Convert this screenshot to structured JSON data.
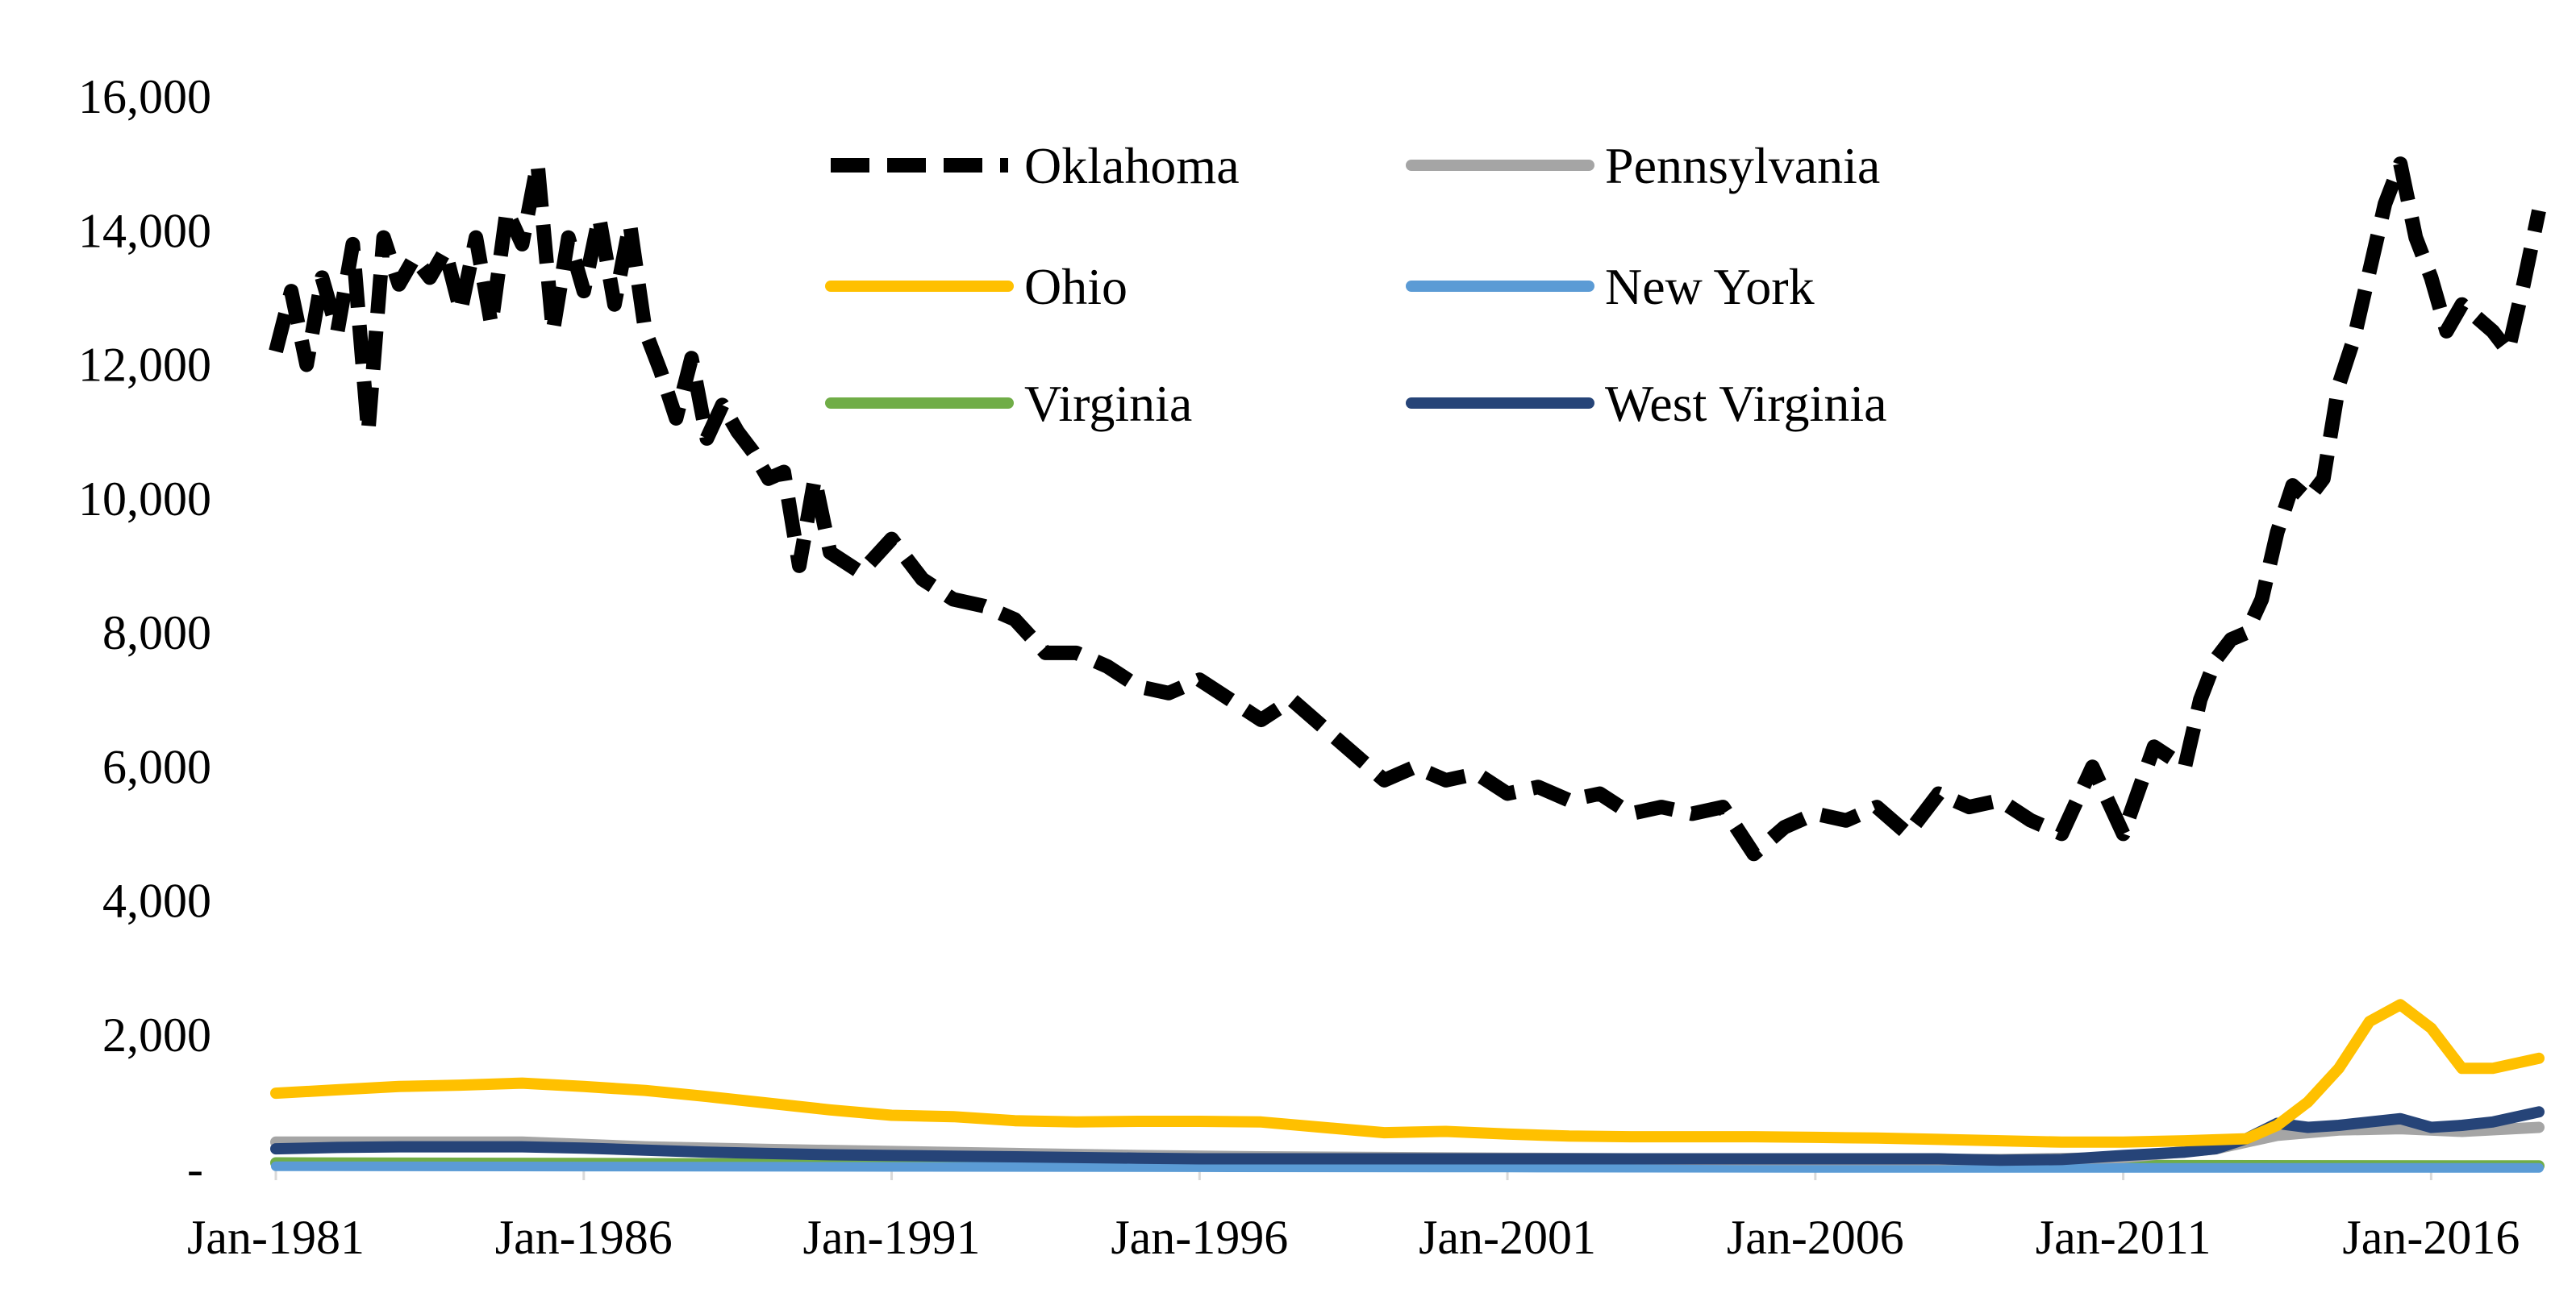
{
  "chart_data": {
    "type": "line",
    "title": "",
    "xlabel": "",
    "ylabel": "",
    "ylim": [
      0,
      16000
    ],
    "xlim": [
      1981.0,
      2017.75
    ],
    "grid": false,
    "legend_position": "top-center",
    "y_ticks": [
      {
        "value": 0,
        "label": "-"
      },
      {
        "value": 2000,
        "label": "2,000"
      },
      {
        "value": 4000,
        "label": "4,000"
      },
      {
        "value": 6000,
        "label": "6,000"
      },
      {
        "value": 8000,
        "label": "8,000"
      },
      {
        "value": 10000,
        "label": "10,000"
      },
      {
        "value": 12000,
        "label": "12,000"
      },
      {
        "value": 14000,
        "label": "14,000"
      },
      {
        "value": 16000,
        "label": "16,000"
      }
    ],
    "x_ticks": [
      {
        "value": 1981,
        "label": "Jan-1981"
      },
      {
        "value": 1986,
        "label": "Jan-1986"
      },
      {
        "value": 1991,
        "label": "Jan-1991"
      },
      {
        "value": 1996,
        "label": "Jan-1996"
      },
      {
        "value": 2001,
        "label": "Jan-2001"
      },
      {
        "value": 2006,
        "label": "Jan-2006"
      },
      {
        "value": 2011,
        "label": "Jan-2011"
      },
      {
        "value": 2016,
        "label": "Jan-2016"
      }
    ],
    "series": [
      {
        "name": "Oklahoma",
        "color": "#000000",
        "dash": "dashed",
        "x": [
          1981.0,
          1981.25,
          1981.5,
          1981.75,
          1982.0,
          1982.25,
          1982.5,
          1982.75,
          1983.0,
          1983.25,
          1983.5,
          1983.75,
          1984.0,
          1984.25,
          1984.5,
          1984.75,
          1985.0,
          1985.25,
          1985.5,
          1985.75,
          1986.0,
          1986.25,
          1986.5,
          1986.75,
          1987.0,
          1987.25,
          1987.5,
          1987.75,
          1988.0,
          1988.25,
          1988.5,
          1988.75,
          1989.0,
          1989.25,
          1989.5,
          1989.75,
          1990.0,
          1990.5,
          1991.0,
          1991.5,
          1992.0,
          1992.5,
          1993.0,
          1993.5,
          1994.0,
          1994.5,
          1995.0,
          1995.5,
          1996.0,
          1996.5,
          1997.0,
          1997.5,
          1998.0,
          1998.5,
          1999.0,
          1999.5,
          2000.0,
          2000.5,
          2001.0,
          2001.5,
          2002.0,
          2002.5,
          2003.0,
          2003.5,
          2004.0,
          2004.5,
          2005.0,
          2005.5,
          2006.0,
          2006.5,
          2007.0,
          2007.5,
          2008.0,
          2008.5,
          2009.0,
          2009.5,
          2010.0,
          2010.5,
          2011.0,
          2011.5,
          2012.0,
          2012.25,
          2012.5,
          2012.75,
          2013.0,
          2013.25,
          2013.5,
          2013.75,
          2014.0,
          2014.25,
          2014.5,
          2014.75,
          2015.0,
          2015.25,
          2015.5,
          2015.75,
          2016.0,
          2016.25,
          2016.5,
          2016.75,
          2017.0,
          2017.25,
          2017.5,
          2017.75
        ],
        "values": [
          12200,
          13100,
          12000,
          13300,
          12500,
          13800,
          11000,
          13900,
          13200,
          13600,
          13300,
          13700,
          12800,
          13900,
          12600,
          14300,
          13800,
          15000,
          12500,
          13900,
          13100,
          14200,
          12900,
          14100,
          12500,
          11900,
          11200,
          12100,
          10900,
          11400,
          11000,
          10700,
          10300,
          10400,
          9000,
          10300,
          9200,
          8900,
          9400,
          8800,
          8500,
          8400,
          8200,
          7700,
          7700,
          7500,
          7200,
          7100,
          7300,
          7000,
          6700,
          7000,
          6600,
          6200,
          5800,
          6000,
          5800,
          5900,
          5600,
          5700,
          5500,
          5600,
          5300,
          5400,
          5300,
          5400,
          4700,
          5100,
          5300,
          5200,
          5400,
          5000,
          5600,
          5400,
          5500,
          5200,
          5000,
          6000,
          5000,
          6300,
          6000,
          7000,
          7600,
          7900,
          8000,
          8500,
          9500,
          10200,
          10000,
          10300,
          11700,
          12400,
          13400,
          14400,
          15000,
          13900,
          13300,
          12500,
          12900,
          12700,
          12500,
          12200,
          13200,
          14300
        ]
      },
      {
        "name": "Pennsylvania",
        "color": "#a5a5a5",
        "dash": "solid",
        "x": [
          1981.0,
          1983.0,
          1985.0,
          1987.0,
          1989.0,
          1991.0,
          1993.0,
          1995.0,
          1997.0,
          1999.0,
          2001.0,
          2003.0,
          2005.0,
          2007.0,
          2009.0,
          2011.0,
          2012.5,
          2013.5,
          2014.5,
          2015.5,
          2016.5,
          2017.75
        ],
        "values": [
          400,
          400,
          400,
          330,
          290,
          260,
          230,
          200,
          180,
          170,
          160,
          150,
          140,
          140,
          140,
          170,
          300,
          500,
          580,
          600,
          560,
          620
        ]
      },
      {
        "name": "Ohio",
        "color": "#ffc000",
        "dash": "solid",
        "x": [
          1981.0,
          1982.0,
          1983.0,
          1984.0,
          1985.0,
          1986.0,
          1987.0,
          1988.0,
          1989.0,
          1990.0,
          1991.0,
          1992.0,
          1993.0,
          1994.0,
          1995.0,
          1996.0,
          1997.0,
          1998.0,
          1999.0,
          2000.0,
          2001.0,
          2002.0,
          2003.0,
          2004.0,
          2005.0,
          2006.0,
          2007.0,
          2008.0,
          2009.0,
          2010.0,
          2011.0,
          2012.0,
          2013.0,
          2013.5,
          2014.0,
          2014.5,
          2015.0,
          2015.5,
          2016.0,
          2016.5,
          2017.0,
          2017.75
        ],
        "values": [
          1130,
          1180,
          1230,
          1250,
          1280,
          1230,
          1170,
          1080,
          980,
          880,
          800,
          780,
          720,
          700,
          710,
          710,
          700,
          620,
          540,
          560,
          520,
          490,
          480,
          480,
          480,
          470,
          460,
          440,
          420,
          400,
          400,
          420,
          450,
          650,
          1000,
          1500,
          2200,
          2450,
          2100,
          1500,
          1500,
          1650
        ]
      },
      {
        "name": "New York",
        "color": "#5b9bd5",
        "dash": "solid",
        "x": [
          1981.0,
          1986.0,
          1991.0,
          1996.0,
          2001.0,
          2006.0,
          2011.0,
          2017.75
        ],
        "values": [
          40,
          35,
          30,
          25,
          20,
          15,
          15,
          15
        ]
      },
      {
        "name": "Virginia",
        "color": "#70ad47",
        "dash": "solid",
        "x": [
          1981.0,
          1986.0,
          1991.0,
          1996.0,
          2001.0,
          2006.0,
          2011.0,
          2017.75
        ],
        "values": [
          90,
          80,
          70,
          60,
          55,
          50,
          50,
          45
        ]
      },
      {
        "name": "West Virginia",
        "color": "#264478",
        "dash": "solid",
        "x": [
          1981.0,
          1982.0,
          1983.0,
          1984.0,
          1985.0,
          1986.0,
          1987.0,
          1988.0,
          1989.0,
          1990.0,
          1991.0,
          1992.0,
          1993.0,
          1994.0,
          1995.0,
          1996.0,
          1997.0,
          1998.0,
          1999.0,
          2000.0,
          2001.0,
          2002.0,
          2003.0,
          2004.0,
          2005.0,
          2006.0,
          2007.0,
          2008.0,
          2009.0,
          2010.0,
          2011.0,
          2012.0,
          2012.5,
          2013.0,
          2013.5,
          2014.0,
          2014.5,
          2015.0,
          2015.5,
          2016.0,
          2016.5,
          2017.0,
          2017.75
        ],
        "values": [
          300,
          320,
          330,
          330,
          330,
          310,
          280,
          250,
          230,
          210,
          200,
          190,
          180,
          170,
          160,
          150,
          150,
          150,
          150,
          150,
          150,
          150,
          150,
          150,
          150,
          150,
          150,
          150,
          130,
          140,
          200,
          250,
          300,
          450,
          680,
          620,
          650,
          700,
          750,
          620,
          650,
          700,
          850
        ]
      }
    ]
  }
}
